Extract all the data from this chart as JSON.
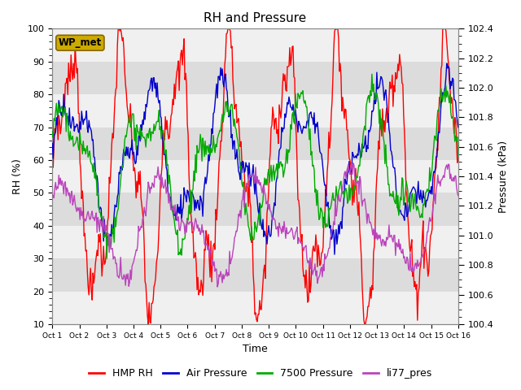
{
  "title": "RH and Pressure",
  "xlabel": "Time",
  "ylabel_left": "RH (%)",
  "ylabel_right": "Pressure (kPa)",
  "ylim_left": [
    10,
    100
  ],
  "ylim_right": [
    100.4,
    102.4
  ],
  "yticks_left": [
    10,
    20,
    30,
    40,
    50,
    60,
    70,
    80,
    90,
    100
  ],
  "yticks_right": [
    100.4,
    100.6,
    100.8,
    101.0,
    101.2,
    101.4,
    101.6,
    101.8,
    102.0,
    102.2,
    102.4
  ],
  "n_points": 500,
  "n_days": 15,
  "x_tick_positions": [
    0,
    1,
    2,
    3,
    4,
    5,
    6,
    7,
    8,
    9,
    10,
    11,
    12,
    13,
    14,
    15
  ],
  "x_tick_labels": [
    "Oct 1",
    "Oct 2",
    "Oct 3",
    "Oct 4",
    "Oct 5",
    "Oct 6",
    "Oct 7",
    "Oct 8",
    "Oct 9",
    "Oct 10",
    "Oct 11",
    "Oct 12",
    "Oct 13",
    "Oct 14",
    "Oct 15",
    "Oct 16"
  ],
  "colors": {
    "rh": "#ff0000",
    "air_p": "#0000cc",
    "p7500": "#00aa00",
    "li77": "#bb44bb"
  },
  "line_width": 1.0,
  "legend_entries": [
    "HMP RH",
    "Air Pressure",
    "7500 Pressure",
    "li77_pres"
  ],
  "wp_met_label": "WP_met",
  "wp_met_facecolor": "#ccaa00",
  "wp_met_edgecolor": "#886600",
  "stripe_light": "#f0f0f0",
  "stripe_dark": "#dcdcdc",
  "fig_facecolor": "#ffffff",
  "title_fontsize": 11,
  "axis_label_fontsize": 9,
  "tick_fontsize": 8,
  "legend_fontsize": 9
}
